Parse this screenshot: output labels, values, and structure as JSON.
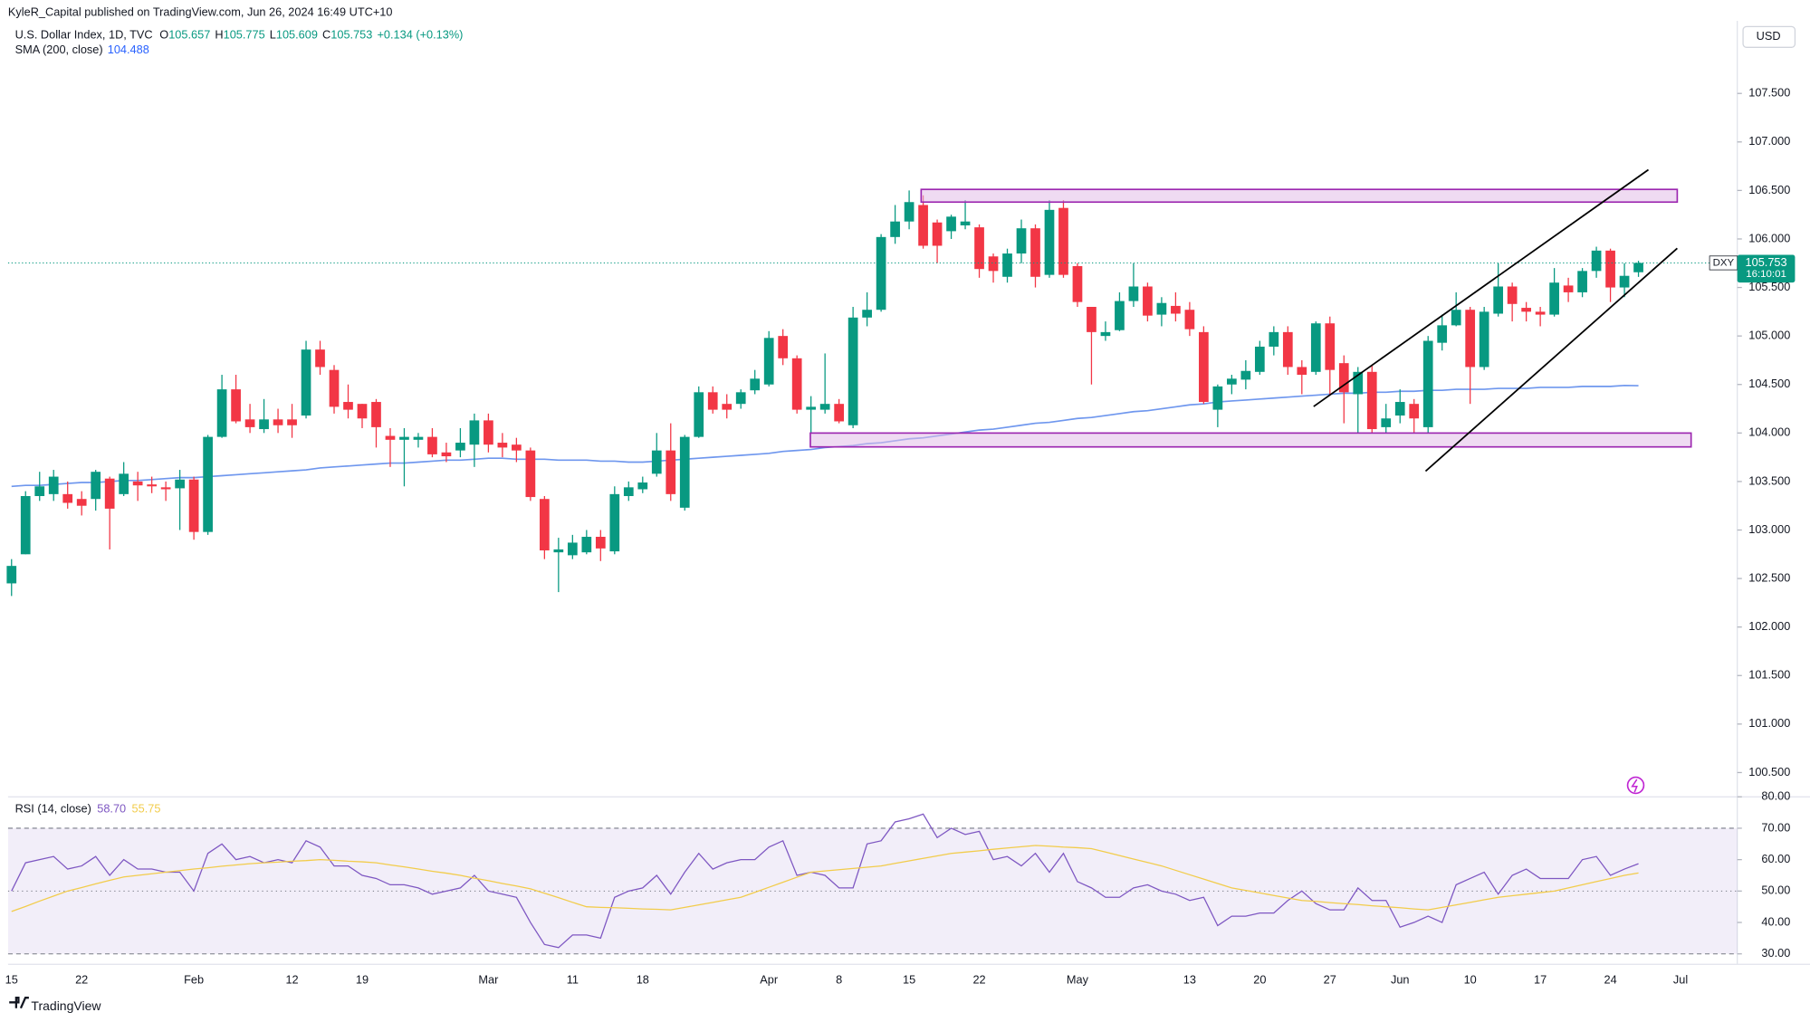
{
  "published": "KyleR_Capital published on TradingView.com, Jun 26, 2024 16:49 UTC+10",
  "currency": "USD",
  "brand": "TradingView",
  "price_label": {
    "symbol": "DXY",
    "price": "105.753",
    "countdown": "16:10:01"
  },
  "chart_data": [
    {
      "type": "candlestick",
      "title": "U.S. Dollar Index, 1D, TVC",
      "ohlc_labels": [
        {
          "key": "O",
          "text": "105.657"
        },
        {
          "key": "H",
          "text": "105.775"
        },
        {
          "key": "L",
          "text": "105.609"
        },
        {
          "key": "C",
          "text": "105.753"
        }
      ],
      "change": "+0.134 (+0.13%)",
      "up_color": "#089981",
      "down_color": "#f23645",
      "categories": [
        "15",
        null,
        null,
        null,
        null,
        "22",
        null,
        null,
        null,
        null,
        null,
        null,
        null,
        "Feb",
        null,
        null,
        null,
        null,
        null,
        null,
        "12",
        null,
        null,
        null,
        null,
        "19",
        null,
        null,
        null,
        null,
        null,
        null,
        null,
        null,
        "Mar",
        null,
        null,
        null,
        null,
        null,
        "11",
        null,
        null,
        null,
        null,
        "18",
        null,
        null,
        null,
        null,
        null,
        null,
        null,
        null,
        "Apr",
        null,
        null,
        null,
        null,
        "8",
        null,
        null,
        null,
        null,
        "15",
        null,
        null,
        null,
        null,
        "22",
        null,
        null,
        null,
        null,
        null,
        null,
        "May",
        null,
        null,
        null,
        null,
        null,
        null,
        null,
        "13",
        null,
        null,
        null,
        null,
        "20",
        null,
        null,
        null,
        null,
        "27",
        null,
        null,
        null,
        null,
        "Jun",
        null,
        null,
        null,
        null,
        "10",
        null,
        null,
        null,
        null,
        "17",
        null,
        null,
        null,
        null,
        "24",
        null,
        null,
        null,
        null,
        "Jul"
      ],
      "open": [
        102.45,
        102.75,
        103.35,
        103.37,
        103.37,
        103.32,
        103.32,
        103.53,
        103.37,
        103.5,
        103.47,
        103.44,
        103.43,
        103.52,
        102.98,
        103.96,
        104.45,
        104.14,
        104.04,
        104.14,
        104.14,
        104.18,
        104.86,
        104.65,
        104.32,
        104.3,
        104.32,
        103.97,
        103.93,
        103.93,
        103.96,
        103.8,
        103.82,
        103.88,
        104.13,
        103.9,
        103.88,
        103.82,
        103.32,
        102.77,
        102.74,
        102.77,
        102.93,
        102.78,
        103.35,
        103.42,
        103.58,
        103.82,
        103.23,
        103.96,
        104.42,
        104.3,
        104.3,
        104.44,
        104.5,
        105.0,
        104.77,
        104.24,
        104.24,
        104.3,
        104.08,
        105.19,
        105.27,
        106.02,
        106.18,
        106.35,
        106.17,
        106.08,
        106.14,
        106.12,
        105.82,
        105.61,
        105.85,
        106.11,
        105.63,
        106.32,
        105.72,
        105.3,
        105.0,
        105.06,
        105.36,
        105.51,
        105.22,
        105.31,
        105.27,
        105.04,
        104.24,
        104.5,
        104.55,
        104.63,
        104.89,
        105.04,
        104.68,
        104.63,
        105.13,
        104.72,
        104.4,
        104.63,
        104.06,
        104.18,
        104.3,
        104.06,
        104.93,
        105.11,
        105.27,
        104.68,
        105.23,
        105.51,
        105.29,
        105.25,
        105.22,
        105.52,
        105.45,
        105.67,
        105.88,
        105.5,
        105.657,
        null,
        null,
        null
      ],
      "high": [
        102.7,
        103.4,
        103.6,
        103.62,
        103.5,
        103.4,
        103.62,
        103.55,
        103.7,
        103.6,
        103.55,
        103.5,
        103.62,
        103.55,
        103.98,
        104.6,
        104.6,
        104.3,
        104.35,
        104.25,
        104.3,
        104.95,
        104.95,
        104.7,
        104.5,
        104.3,
        104.35,
        104.05,
        104.05,
        104.0,
        104.05,
        103.9,
        104.05,
        104.2,
        104.2,
        104.0,
        103.95,
        103.85,
        103.35,
        102.92,
        102.95,
        103.0,
        103.0,
        103.45,
        103.5,
        103.55,
        104.0,
        104.1,
        103.98,
        104.48,
        104.48,
        104.4,
        104.45,
        104.65,
        105.05,
        105.07,
        104.8,
        104.38,
        104.82,
        104.35,
        105.3,
        105.45,
        106.05,
        106.35,
        106.5,
        106.45,
        106.2,
        106.25,
        106.4,
        106.15,
        105.85,
        105.9,
        106.2,
        106.15,
        106.4,
        106.4,
        105.75,
        105.3,
        105.15,
        105.45,
        105.75,
        105.55,
        105.4,
        105.45,
        105.35,
        105.1,
        104.5,
        104.6,
        104.75,
        104.95,
        105.1,
        105.1,
        104.75,
        105.15,
        105.2,
        104.8,
        104.68,
        104.7,
        104.3,
        104.45,
        104.35,
        105.0,
        105.22,
        105.45,
        105.3,
        105.3,
        105.75,
        105.55,
        105.35,
        105.3,
        105.7,
        105.6,
        105.7,
        105.92,
        105.9,
        105.75,
        105.775,
        null,
        null,
        null
      ],
      "low": [
        102.32,
        102.75,
        103.3,
        103.3,
        103.22,
        103.15,
        103.2,
        102.8,
        103.35,
        103.3,
        103.38,
        103.3,
        103.0,
        102.9,
        102.95,
        103.95,
        104.1,
        104.0,
        104.0,
        104.0,
        103.95,
        104.15,
        104.6,
        104.2,
        104.15,
        104.05,
        103.85,
        103.65,
        103.45,
        103.85,
        103.75,
        103.7,
        103.75,
        103.65,
        103.8,
        103.75,
        103.7,
        103.3,
        102.7,
        102.36,
        102.7,
        102.75,
        102.68,
        102.75,
        103.3,
        103.38,
        103.55,
        103.3,
        103.2,
        103.95,
        104.2,
        104.15,
        104.25,
        104.4,
        104.48,
        104.7,
        104.2,
        104.0,
        104.2,
        104.1,
        104.05,
        105.1,
        105.25,
        105.95,
        106.1,
        105.9,
        105.75,
        106.0,
        106.1,
        105.6,
        105.55,
        105.55,
        105.75,
        105.5,
        105.6,
        105.6,
        105.3,
        104.5,
        104.95,
        105.05,
        105.3,
        105.15,
        105.1,
        105.15,
        105.0,
        104.3,
        104.06,
        104.4,
        104.45,
        104.6,
        104.8,
        104.6,
        104.4,
        104.6,
        104.4,
        104.1,
        104.0,
        104.0,
        104.0,
        104.1,
        104.0,
        104.0,
        104.85,
        105.1,
        104.3,
        104.65,
        105.2,
        105.15,
        105.15,
        105.1,
        105.2,
        105.35,
        105.4,
        105.6,
        105.35,
        105.4,
        105.609,
        null,
        null,
        null
      ],
      "close": [
        102.63,
        103.35,
        103.45,
        103.55,
        103.28,
        103.25,
        103.6,
        103.22,
        103.58,
        103.46,
        103.45,
        103.42,
        103.52,
        102.98,
        103.96,
        104.45,
        104.12,
        104.06,
        104.14,
        104.08,
        104.08,
        104.86,
        104.68,
        104.27,
        104.24,
        104.15,
        104.06,
        103.93,
        103.96,
        103.96,
        103.78,
        103.76,
        103.9,
        104.13,
        103.88,
        103.85,
        103.82,
        103.34,
        102.79,
        102.8,
        102.87,
        102.93,
        102.81,
        103.37,
        103.44,
        103.49,
        103.82,
        103.37,
        103.96,
        104.42,
        104.24,
        104.24,
        104.42,
        104.56,
        104.98,
        104.77,
        104.24,
        104.27,
        104.3,
        104.12,
        105.19,
        105.27,
        106.02,
        106.18,
        106.38,
        105.93,
        105.93,
        106.23,
        106.18,
        105.69,
        105.67,
        105.85,
        106.11,
        105.61,
        106.3,
        105.63,
        105.35,
        105.04,
        105.04,
        105.36,
        105.51,
        105.21,
        105.34,
        105.23,
        105.07,
        104.32,
        104.48,
        104.56,
        104.64,
        104.89,
        105.04,
        104.68,
        104.6,
        105.13,
        104.65,
        104.42,
        104.63,
        104.04,
        104.15,
        104.32,
        104.15,
        104.95,
        105.11,
        105.27,
        104.68,
        105.25,
        105.51,
        105.33,
        105.25,
        105.22,
        105.55,
        105.45,
        105.67,
        105.88,
        105.5,
        105.62,
        105.753,
        null,
        null,
        null
      ],
      "series": [
        {
          "name": "SMA (200, close)",
          "color": "#6f97ee",
          "last_label": "104.488",
          "values": [
            103.45,
            103.46,
            103.46,
            103.47,
            103.48,
            103.49,
            103.49,
            103.5,
            103.51,
            103.51,
            103.52,
            103.53,
            103.54,
            103.54,
            103.55,
            103.56,
            103.57,
            103.58,
            103.59,
            103.6,
            103.61,
            103.62,
            103.64,
            103.65,
            103.66,
            103.67,
            103.68,
            103.69,
            103.69,
            103.7,
            103.71,
            103.72,
            103.72,
            103.73,
            103.74,
            103.74,
            103.73,
            103.73,
            103.73,
            103.72,
            103.72,
            103.72,
            103.71,
            103.71,
            103.7,
            103.7,
            103.71,
            103.72,
            103.73,
            103.74,
            103.75,
            103.76,
            103.77,
            103.78,
            103.79,
            103.81,
            103.82,
            103.83,
            103.85,
            103.86,
            103.87,
            103.89,
            103.9,
            103.92,
            103.94,
            103.95,
            103.97,
            103.99,
            104.01,
            104.03,
            104.04,
            104.06,
            104.08,
            104.1,
            104.11,
            104.13,
            104.15,
            104.16,
            104.18,
            104.2,
            104.22,
            104.23,
            104.25,
            104.27,
            104.29,
            104.3,
            104.32,
            104.33,
            104.34,
            104.35,
            104.36,
            104.37,
            104.38,
            104.39,
            104.4,
            104.41,
            104.41,
            104.42,
            104.42,
            104.43,
            104.43,
            104.44,
            104.44,
            104.45,
            104.45,
            104.45,
            104.46,
            104.46,
            104.46,
            104.47,
            104.47,
            104.47,
            104.48,
            104.48,
            104.48,
            104.49,
            104.488,
            null,
            null,
            null
          ]
        }
      ],
      "ylim": [
        100.25,
        108.225
      ],
      "yticks": [
        {
          "value": 100.5,
          "label": "100.500"
        },
        {
          "value": 101,
          "label": "101.000"
        },
        {
          "value": 101.5,
          "label": "101.500"
        },
        {
          "value": 102,
          "label": "102.000"
        },
        {
          "value": 102.5,
          "label": "102.500"
        },
        {
          "value": 103,
          "label": "103.000"
        },
        {
          "value": 103.5,
          "label": "103.500"
        },
        {
          "value": 104,
          "label": "104.000"
        },
        {
          "value": 104.5,
          "label": "104.500"
        },
        {
          "value": 105,
          "label": "105.000"
        },
        {
          "value": 105.5,
          "label": "105.500"
        },
        {
          "value": 106,
          "label": "106.000"
        },
        {
          "value": 106.5,
          "label": "106.500"
        },
        {
          "value": 107,
          "label": "107.000"
        },
        {
          "value": 107.5,
          "label": "107.500"
        }
      ]
    },
    {
      "type": "line",
      "title": "RSI (14, close)",
      "series": [
        {
          "color": "#7e57c2",
          "last_label": "58.70",
          "values": [
            50,
            59,
            60,
            61,
            57,
            58,
            61,
            55,
            60,
            57,
            57,
            56,
            56,
            50,
            62,
            65,
            60,
            61,
            59,
            60,
            59,
            66,
            64,
            58,
            58,
            55,
            54,
            52,
            52,
            51,
            49,
            50,
            51,
            55,
            50,
            49,
            48,
            40,
            33,
            32,
            36,
            36,
            35,
            48,
            50,
            51,
            55,
            49,
            56,
            62,
            57,
            59,
            60,
            60,
            64,
            66,
            55,
            56,
            55,
            51,
            51,
            65,
            66,
            72,
            73,
            74.5,
            67,
            70,
            68,
            69,
            60,
            61,
            58,
            62,
            56,
            62,
            53,
            51,
            48,
            48,
            51,
            52,
            50,
            49,
            47,
            48,
            39,
            42,
            42,
            43,
            43,
            47,
            50,
            46,
            44,
            44,
            51,
            47,
            47,
            38.5,
            40,
            42,
            40,
            52,
            54,
            56,
            49,
            55,
            57,
            54,
            54,
            54,
            60,
            61,
            55,
            57,
            58.7,
            null,
            null,
            null
          ]
        },
        {
          "color": "#f2cc4b",
          "last_label": "55.75",
          "values": [
            43.5,
            45.1,
            46.8,
            48.4,
            50,
            51.1,
            52.3,
            53.4,
            54.5,
            55,
            55.5,
            56,
            56.5,
            57,
            57.4,
            57.9,
            58.3,
            58.7,
            59,
            59.2,
            59.5,
            59.7,
            60,
            59.8,
            59.5,
            59.3,
            59,
            58.3,
            57.7,
            57,
            56.3,
            55.7,
            55,
            54.1,
            53.3,
            52.4,
            51.6,
            50.7,
            49.3,
            47.9,
            46.4,
            45,
            44.8,
            44.7,
            44.5,
            44.3,
            44.2,
            44,
            44.8,
            45.6,
            46.4,
            47.2,
            48,
            49.6,
            51.2,
            52.8,
            54.4,
            56,
            56.4,
            56.8,
            57.2,
            57.6,
            58,
            58.8,
            59.6,
            60.4,
            61.2,
            62,
            62.4,
            62.8,
            63.3,
            63.7,
            64.1,
            64.5,
            64.3,
            64,
            63.8,
            63.5,
            62.4,
            61.3,
            60.2,
            59.1,
            58,
            56.6,
            55.2,
            53.8,
            52.4,
            51,
            50.2,
            49.4,
            48.6,
            47.8,
            47,
            46.7,
            46.3,
            46,
            45.7,
            45.3,
            45,
            44.7,
            44.3,
            44,
            44.8,
            45.6,
            46.4,
            47.2,
            48,
            48.5,
            49,
            49.5,
            50,
            51,
            52,
            53,
            54,
            55,
            55.75,
            null,
            null,
            null
          ]
        }
      ],
      "levels": [
        30,
        50,
        70
      ],
      "ylim": [
        30,
        80
      ],
      "yticks": [
        {
          "value": 30,
          "label": "30.00"
        },
        {
          "value": 40,
          "label": "40.00"
        },
        {
          "value": 50,
          "label": "50.00"
        },
        {
          "value": 60,
          "label": "60.00"
        },
        {
          "value": 70,
          "label": "70.00"
        },
        {
          "value": 80,
          "label": "80.00"
        }
      ]
    }
  ]
}
